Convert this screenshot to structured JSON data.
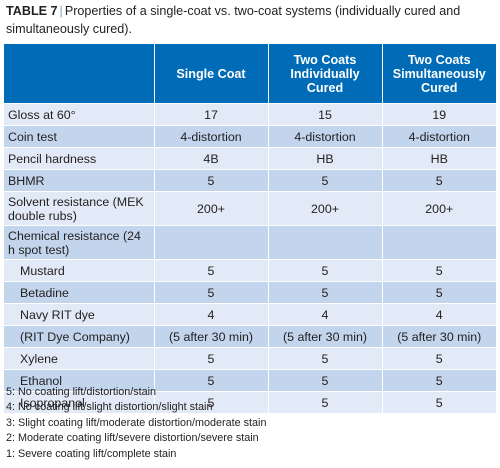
{
  "caption": {
    "number": "TABLE 7",
    "separator": "|",
    "text": "Properties of a single-coat vs. two-coat systems (individually cured and simultaneously cured)."
  },
  "table": {
    "headers": [
      "",
      "Single Coat",
      "Two Coats Individually Cured",
      "Two Coats Simultaneously Cured"
    ],
    "rows": [
      {
        "label": "Gloss at 60°",
        "values": [
          "17",
          "15",
          "19"
        ],
        "indent": false,
        "tall": false
      },
      {
        "label": "Coin test",
        "values": [
          "4-distortion",
          "4-distortion",
          "4-distortion"
        ],
        "indent": false,
        "tall": false
      },
      {
        "label": "Pencil hardness",
        "values": [
          "4B",
          "HB",
          "HB"
        ],
        "indent": false,
        "tall": false
      },
      {
        "label": "BHMR",
        "values": [
          "5",
          "5",
          "5"
        ],
        "indent": false,
        "tall": false
      },
      {
        "label": "Solvent resistance (MEK double rubs)",
        "values": [
          "200+",
          "200+",
          "200+"
        ],
        "indent": false,
        "tall": true
      },
      {
        "label": "Chemical resistance (24 h spot test)",
        "values": [
          "",
          "",
          ""
        ],
        "indent": false,
        "tall": true
      },
      {
        "label": "Mustard",
        "values": [
          "5",
          "5",
          "5"
        ],
        "indent": true,
        "tall": false
      },
      {
        "label": "Betadine",
        "values": [
          "5",
          "5",
          "5"
        ],
        "indent": true,
        "tall": false
      },
      {
        "label": "Navy RIT dye",
        "values": [
          "4",
          "4",
          "4"
        ],
        "indent": true,
        "tall": false
      },
      {
        "label": "(RIT Dye Company)",
        "values": [
          "(5 after 30 min)",
          "(5 after 30 min)",
          "(5 after 30 min)"
        ],
        "indent": true,
        "tall": false
      },
      {
        "label": "Xylene",
        "values": [
          "5",
          "5",
          "5"
        ],
        "indent": true,
        "tall": false
      },
      {
        "label": "Ethanol",
        "values": [
          "5",
          "5",
          "5"
        ],
        "indent": true,
        "tall": false
      },
      {
        "label": "Isopropanol",
        "values": [
          "5",
          "5",
          "5"
        ],
        "indent": true,
        "tall": false
      }
    ]
  },
  "legend": [
    "5: No coating lift/distortion/stain",
    "4: No coating lift/slight distortion/slight stain",
    "3: Slight coating lift/moderate distortion/moderate stain",
    "2: Moderate coating lift/severe distortion/severe stain",
    "1: Severe coating lift/complete stain"
  ],
  "colors": {
    "header_bg": "#006bb6",
    "row_light": "#e1eaf6",
    "row_dark": "#c2d5ec",
    "separator": "#7aa7d6"
  }
}
